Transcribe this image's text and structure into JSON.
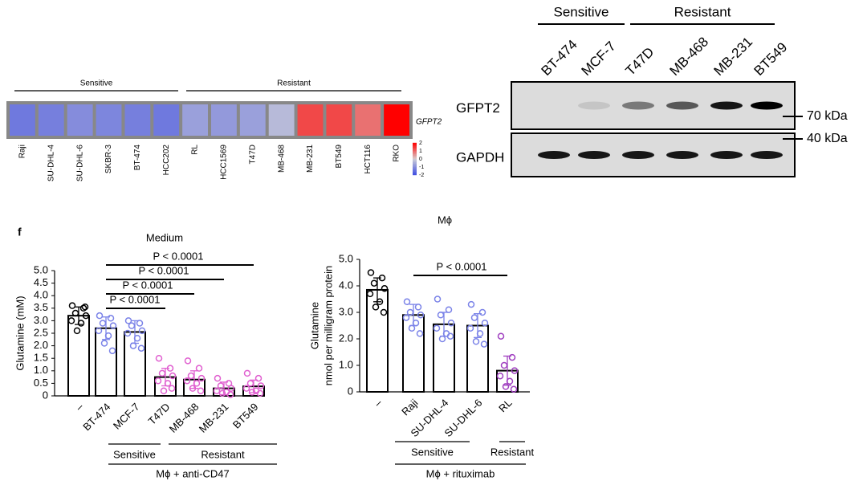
{
  "heatmap": {
    "group_labels": [
      "Sensitive",
      "Resistant"
    ],
    "gene": "GFPT2",
    "cell_lines": [
      "Raji",
      "SU-DHL-4",
      "SU-DHL-6",
      "SKBR-3",
      "BT-474",
      "HCC202",
      "RL",
      "HCC1569",
      "T47D",
      "MB-468",
      "MB-231",
      "BT549",
      "HCT116",
      "RKO"
    ],
    "values": [
      -1.3,
      -1.2,
      -1.0,
      -1.1,
      -1.2,
      -1.3,
      -0.7,
      -0.8,
      -0.7,
      -0.3,
      1.3,
      1.3,
      0.9,
      2
    ],
    "colorbar_lim": [
      -2,
      2
    ],
    "colorbar_ticks": [
      2,
      1,
      0,
      -1,
      -2
    ]
  },
  "blot": {
    "group_labels": [
      "Sensitive",
      "Resistant"
    ],
    "lanes": [
      "BT-474",
      "MCF-7",
      "T47D",
      "MB-468",
      "MB-231",
      "BT549"
    ],
    "rows": [
      {
        "label": "GFPT2",
        "intensity": [
          0,
          0.1,
          0.45,
          0.6,
          0.9,
          1
        ]
      },
      {
        "label": "GAPDH",
        "intensity": [
          0.9,
          0.9,
          0.9,
          0.9,
          0.9,
          0.9
        ]
      }
    ],
    "markers": [
      "70 kDa",
      "40 kDa"
    ]
  },
  "chart_data": [
    {
      "type": "bar",
      "panel_label": "f",
      "title": "Medium",
      "ylabel": [
        "Glutamine (mM)"
      ],
      "categories": [
        "–",
        "BT-474",
        "MCF-7",
        "T47D",
        "MB-468",
        "MB-231",
        "BT549"
      ],
      "values": [
        3.2,
        2.7,
        2.55,
        0.75,
        0.65,
        0.3,
        0.38
      ],
      "errors": [
        0.35,
        0.45,
        0.45,
        0.35,
        0.35,
        0.25,
        0.25
      ],
      "colors": [
        "#000000",
        "#7b83e8",
        "#7b83e8",
        "#e060d0",
        "#e060d0",
        "#e060d0",
        "#e060d0"
      ],
      "points": [
        [
          3.6,
          3.5,
          3.3,
          3.2,
          3.0,
          2.9,
          2.6,
          3.55
        ],
        [
          3.2,
          3.1,
          2.9,
          2.8,
          2.6,
          2.4,
          2.1,
          1.8
        ],
        [
          3.0,
          2.9,
          2.8,
          2.6,
          2.5,
          2.3,
          2.0,
          1.9
        ],
        [
          1.5,
          1.1,
          0.9,
          0.8,
          0.6,
          0.5,
          0.2,
          0.3
        ],
        [
          1.4,
          1.1,
          0.8,
          0.7,
          0.6,
          0.5,
          0.3,
          0.2
        ],
        [
          0.7,
          0.5,
          0.4,
          0.3,
          0.2,
          0.15,
          0.1,
          0.05
        ],
        [
          0.9,
          0.7,
          0.5,
          0.4,
          0.3,
          0.2,
          0.15,
          0.1
        ]
      ],
      "ylim": [
        0,
        5
      ],
      "yticks": [
        0,
        0.5,
        {
          "value": 1,
          "label": "1.0"
        },
        1.5,
        {
          "value": 2,
          "label": "2.0"
        },
        2.5,
        {
          "value": 3,
          "label": "3.0"
        },
        3.5,
        {
          "value": 4,
          "label": "4.0"
        },
        4.5,
        {
          "value": 5,
          "label": "5.0"
        }
      ],
      "comparisons": [
        "P < 0.0001",
        "P < 0.0001",
        "P < 0.0001",
        "P < 0.0001"
      ],
      "groups": [
        "Sensitive",
        "Resistant"
      ],
      "xlabel": "Mϕ + anti-CD47"
    },
    {
      "type": "bar",
      "title": "Mϕ",
      "ylabel": [
        "Glutamine",
        "nmol per milligram protein"
      ],
      "categories": [
        "–",
        "Raji",
        "SU-DHL-4",
        "SU-DHL-6",
        "RL"
      ],
      "values": [
        3.85,
        2.9,
        2.55,
        2.5,
        0.8
      ],
      "errors": [
        0.45,
        0.4,
        0.45,
        0.45,
        0.55
      ],
      "colors": [
        "#000000",
        "#7b83e8",
        "#7b83e8",
        "#7b83e8",
        "#a040c0"
      ],
      "points": [
        [
          4.5,
          4.3,
          4.1,
          3.9,
          3.7,
          3.4,
          3.2,
          3.0
        ],
        [
          3.4,
          3.2,
          3.0,
          2.9,
          2.8,
          2.6,
          2.4,
          2.2
        ],
        [
          3.5,
          3.1,
          2.9,
          2.6,
          2.4,
          2.2,
          2.0,
          2.1
        ],
        [
          3.3,
          3.0,
          2.8,
          2.6,
          2.4,
          2.2,
          1.9,
          1.8
        ],
        [
          2.1,
          1.3,
          1.0,
          0.8,
          0.6,
          0.4,
          0.2,
          0.1
        ]
      ],
      "ylim": [
        0,
        5
      ],
      "yticks": [
        0,
        {
          "value": 1,
          "label": "1.0"
        },
        {
          "value": 2,
          "label": "2.0"
        },
        {
          "value": 3,
          "label": "3.0"
        },
        {
          "value": 4,
          "label": "4.0"
        },
        {
          "value": 5,
          "label": "5.0"
        }
      ],
      "comparisons": [
        "P < 0.0001"
      ],
      "groups": [
        "Sensitive",
        "Resistant"
      ],
      "xlabel": "Mϕ + rituximab"
    }
  ]
}
